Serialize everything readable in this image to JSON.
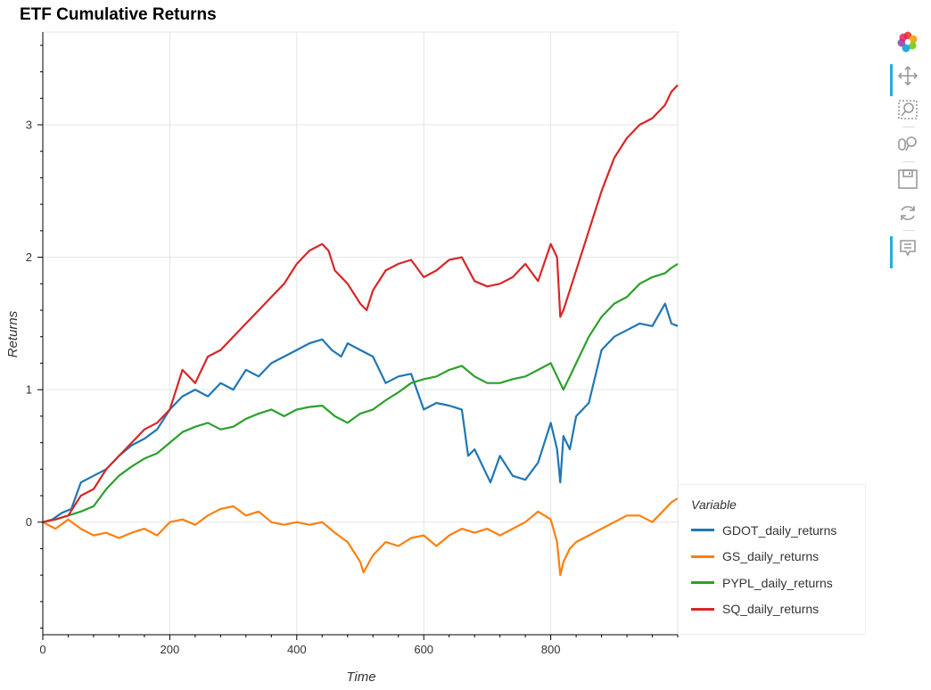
{
  "title": "ETF Cumulative Returns",
  "toolbar": {
    "tools": [
      "bokeh-logo-icon",
      "pan-icon",
      "box-zoom-icon",
      "wheel-zoom-icon",
      "save-icon",
      "reset-icon",
      "hover-icon"
    ],
    "active_color": "#26aae1"
  },
  "chart_data": {
    "type": "line",
    "title": "ETF Cumulative Returns",
    "xlabel": "Time",
    "ylabel": "Returns",
    "xlim": [
      0,
      1000
    ],
    "ylim": [
      -0.85,
      3.7
    ],
    "x_ticks": [
      0,
      200,
      400,
      600,
      800
    ],
    "y_ticks": [
      0,
      1,
      2,
      3
    ],
    "grid": true,
    "legend": {
      "title": "Variable",
      "placement": "bottom-right-outside"
    },
    "series": [
      {
        "name": "GDOT_daily_returns",
        "color": "#1f77b4",
        "x": [
          0,
          15,
          30,
          45,
          60,
          80,
          100,
          120,
          140,
          160,
          180,
          200,
          220,
          240,
          260,
          280,
          300,
          320,
          340,
          360,
          380,
          400,
          420,
          440,
          455,
          470,
          480,
          500,
          520,
          540,
          560,
          580,
          600,
          620,
          640,
          660,
          670,
          680,
          700,
          705,
          720,
          740,
          760,
          780,
          800,
          810,
          815,
          820,
          830,
          840,
          860,
          880,
          900,
          920,
          940,
          960,
          980,
          990,
          1000
        ],
        "y": [
          0.0,
          0.02,
          0.07,
          0.1,
          0.3,
          0.35,
          0.4,
          0.5,
          0.58,
          0.63,
          0.7,
          0.85,
          0.95,
          1.0,
          0.95,
          1.05,
          1.0,
          1.15,
          1.1,
          1.2,
          1.25,
          1.3,
          1.35,
          1.38,
          1.3,
          1.25,
          1.35,
          1.3,
          1.25,
          1.05,
          1.1,
          1.12,
          0.85,
          0.9,
          0.88,
          0.85,
          0.5,
          0.55,
          0.35,
          0.3,
          0.5,
          0.35,
          0.32,
          0.45,
          0.75,
          0.55,
          0.3,
          0.65,
          0.55,
          0.8,
          0.9,
          1.3,
          1.4,
          1.45,
          1.5,
          1.48,
          1.65,
          1.5,
          1.48
        ]
      },
      {
        "name": "GS_daily_returns",
        "color": "#ff7f0e",
        "x": [
          0,
          20,
          40,
          60,
          80,
          100,
          120,
          140,
          160,
          180,
          200,
          220,
          240,
          260,
          280,
          300,
          320,
          340,
          360,
          380,
          400,
          420,
          440,
          460,
          480,
          500,
          505,
          520,
          540,
          560,
          580,
          600,
          620,
          640,
          660,
          680,
          700,
          720,
          740,
          760,
          780,
          800,
          810,
          815,
          820,
          830,
          840,
          860,
          880,
          900,
          920,
          940,
          960,
          980,
          990,
          1000
        ],
        "y": [
          0.0,
          -0.05,
          0.02,
          -0.05,
          -0.1,
          -0.08,
          -0.12,
          -0.08,
          -0.05,
          -0.1,
          0.0,
          0.02,
          -0.02,
          0.05,
          0.1,
          0.12,
          0.05,
          0.08,
          0.0,
          -0.02,
          0.0,
          -0.02,
          0.0,
          -0.08,
          -0.15,
          -0.3,
          -0.38,
          -0.25,
          -0.15,
          -0.18,
          -0.12,
          -0.1,
          -0.18,
          -0.1,
          -0.05,
          -0.08,
          -0.05,
          -0.1,
          -0.05,
          0.0,
          0.08,
          0.02,
          -0.15,
          -0.4,
          -0.3,
          -0.2,
          -0.15,
          -0.1,
          -0.05,
          0.0,
          0.05,
          0.05,
          0.0,
          0.1,
          0.15,
          0.18
        ]
      },
      {
        "name": "PYPL_daily_returns",
        "color": "#2ca02c",
        "x": [
          0,
          20,
          40,
          60,
          80,
          100,
          120,
          140,
          160,
          180,
          200,
          220,
          240,
          260,
          280,
          300,
          320,
          340,
          360,
          380,
          400,
          420,
          440,
          460,
          480,
          500,
          520,
          540,
          560,
          580,
          600,
          620,
          640,
          660,
          680,
          700,
          720,
          740,
          760,
          780,
          800,
          810,
          820,
          830,
          840,
          860,
          880,
          900,
          920,
          940,
          960,
          980,
          990,
          1000
        ],
        "y": [
          0.0,
          0.02,
          0.05,
          0.08,
          0.12,
          0.25,
          0.35,
          0.42,
          0.48,
          0.52,
          0.6,
          0.68,
          0.72,
          0.75,
          0.7,
          0.72,
          0.78,
          0.82,
          0.85,
          0.8,
          0.85,
          0.87,
          0.88,
          0.8,
          0.75,
          0.82,
          0.85,
          0.92,
          0.98,
          1.05,
          1.08,
          1.1,
          1.15,
          1.18,
          1.1,
          1.05,
          1.05,
          1.08,
          1.1,
          1.15,
          1.2,
          1.1,
          1.0,
          1.1,
          1.2,
          1.4,
          1.55,
          1.65,
          1.7,
          1.8,
          1.85,
          1.88,
          1.92,
          1.95
        ]
      },
      {
        "name": "SQ_daily_returns",
        "color": "#d62728",
        "x": [
          0,
          20,
          40,
          60,
          80,
          100,
          120,
          140,
          160,
          180,
          200,
          220,
          240,
          260,
          280,
          300,
          320,
          340,
          360,
          380,
          400,
          420,
          440,
          450,
          460,
          480,
          500,
          510,
          520,
          540,
          560,
          580,
          600,
          620,
          640,
          660,
          680,
          700,
          720,
          740,
          760,
          780,
          800,
          810,
          815,
          820,
          830,
          840,
          860,
          880,
          900,
          920,
          940,
          960,
          980,
          990,
          1000
        ],
        "y": [
          0.0,
          0.02,
          0.05,
          0.2,
          0.25,
          0.4,
          0.5,
          0.6,
          0.7,
          0.75,
          0.85,
          1.15,
          1.05,
          1.25,
          1.3,
          1.4,
          1.5,
          1.6,
          1.7,
          1.8,
          1.95,
          2.05,
          2.1,
          2.05,
          1.9,
          1.8,
          1.65,
          1.6,
          1.75,
          1.9,
          1.95,
          1.98,
          1.85,
          1.9,
          1.98,
          2.0,
          1.82,
          1.78,
          1.8,
          1.85,
          1.95,
          1.82,
          2.1,
          2.0,
          1.55,
          1.6,
          1.75,
          1.9,
          2.2,
          2.5,
          2.75,
          2.9,
          3.0,
          3.05,
          3.15,
          3.25,
          3.3
        ]
      }
    ]
  }
}
